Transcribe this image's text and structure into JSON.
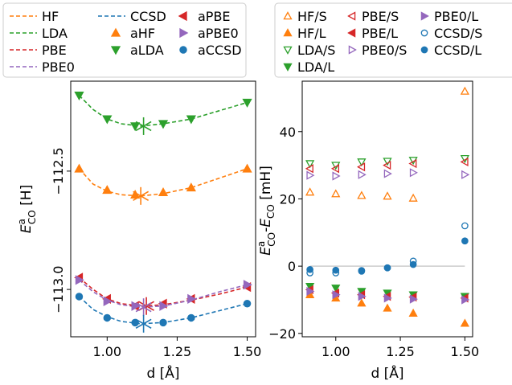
{
  "colors": {
    "HF": "#ff7f0e",
    "LDA": "#2ca02c",
    "PBE": "#d62728",
    "PBE0": "#9467bd",
    "CCSD": "#1f77b4"
  },
  "chart_data": [
    {
      "type": "scatter",
      "xlabel": "d [Å]",
      "ylabel": "E_CO^a [H]",
      "xlim": [
        0.87,
        1.53
      ],
      "ylim": [
        -113.2,
        -112.12
      ],
      "x_ticks": [
        1.0,
        1.25,
        1.5
      ],
      "x_tick_labels": [
        "1.00",
        "1.25",
        "1.50"
      ],
      "y_ticks": [
        -113.0,
        -112.5
      ],
      "y_tick_labels": [
        "−113.0",
        "−112.5"
      ],
      "legend": {
        "placement": "top",
        "entries": [
          {
            "label": "HF",
            "series": "HF",
            "kind": "line"
          },
          {
            "label": "LDA",
            "series": "LDA",
            "kind": "line"
          },
          {
            "label": "PBE",
            "series": "PBE",
            "kind": "line"
          },
          {
            "label": "PBE0",
            "series": "PBE0",
            "kind": "line"
          },
          {
            "label": "CCSD",
            "series": "CCSD",
            "kind": "line"
          },
          {
            "label": "aHF",
            "series": "HF",
            "kind": "marker",
            "marker": "triangle-up"
          },
          {
            "label": "aLDA",
            "series": "LDA",
            "kind": "marker",
            "marker": "triangle-down"
          },
          {
            "label": "aPBE",
            "series": "PBE",
            "kind": "marker",
            "marker": "triangle-left"
          },
          {
            "label": "aPBE0",
            "series": "PBE0",
            "kind": "marker",
            "marker": "triangle-right"
          },
          {
            "label": "aCCSD",
            "series": "CCSD",
            "kind": "marker",
            "marker": "circle"
          }
        ]
      },
      "x": [
        0.9,
        1.0,
        1.1,
        1.2,
        1.3,
        1.5
      ],
      "series": [
        {
          "name": "aHF",
          "key": "HF",
          "marker": "triangle-up",
          "values": [
            -112.49,
            -112.58,
            -112.6,
            -112.59,
            -112.57,
            -112.49
          ]
        },
        {
          "name": "aLDA",
          "key": "LDA",
          "marker": "triangle-down",
          "values": [
            -112.18,
            -112.28,
            -112.31,
            -112.3,
            -112.28,
            -112.21
          ]
        },
        {
          "name": "aPBE",
          "key": "PBE",
          "marker": "triangle-left",
          "values": [
            -112.95,
            -113.04,
            -113.07,
            -113.06,
            -113.04,
            -112.99
          ]
        },
        {
          "name": "aPBE0",
          "key": "PBE0",
          "marker": "triangle-right",
          "values": [
            -112.96,
            -113.05,
            -113.07,
            -113.07,
            -113.04,
            -112.98
          ]
        },
        {
          "name": "aCCSD",
          "key": "CCSD",
          "marker": "circle",
          "values": [
            -113.03,
            -113.12,
            -113.14,
            -113.14,
            -113.12,
            -113.06
          ]
        }
      ],
      "fits": [
        {
          "name": "HF",
          "key": "HF",
          "x": [
            0.9,
            0.95,
            1.0,
            1.05,
            1.12,
            1.2,
            1.3,
            1.4,
            1.5
          ],
          "y": [
            -112.49,
            -112.555,
            -112.585,
            -112.6,
            -112.605,
            -112.595,
            -112.57,
            -112.53,
            -112.49
          ]
        },
        {
          "name": "LDA",
          "key": "LDA",
          "x": [
            0.9,
            0.95,
            1.0,
            1.05,
            1.12,
            1.2,
            1.3,
            1.4,
            1.5
          ],
          "y": [
            -112.18,
            -112.24,
            -112.28,
            -112.3,
            -112.31,
            -112.3,
            -112.28,
            -112.245,
            -112.21
          ]
        },
        {
          "name": "PBE",
          "key": "PBE",
          "x": [
            0.9,
            0.95,
            1.0,
            1.05,
            1.12,
            1.2,
            1.3,
            1.4,
            1.5
          ],
          "y": [
            -112.95,
            -113.0,
            -113.04,
            -113.06,
            -113.07,
            -113.065,
            -113.045,
            -113.02,
            -112.99
          ]
        },
        {
          "name": "PBE0",
          "key": "PBE0",
          "x": [
            0.9,
            0.95,
            1.0,
            1.05,
            1.12,
            1.2,
            1.3,
            1.4,
            1.5
          ],
          "y": [
            -112.96,
            -113.01,
            -113.045,
            -113.065,
            -113.075,
            -113.07,
            -113.045,
            -113.01,
            -112.98
          ]
        },
        {
          "name": "CCSD",
          "key": "CCSD",
          "x": [
            0.9,
            0.95,
            1.0,
            1.05,
            1.12,
            1.2,
            1.3,
            1.4,
            1.5
          ],
          "y": [
            -113.03,
            -113.085,
            -113.115,
            -113.135,
            -113.145,
            -113.14,
            -113.12,
            -113.09,
            -113.06
          ]
        }
      ],
      "minima": [
        {
          "key": "HF",
          "x": 1.12,
          "y": -112.605
        },
        {
          "key": "LDA",
          "x": 1.13,
          "y": -112.31
        },
        {
          "key": "PBE",
          "x": 1.14,
          "y": -113.07
        },
        {
          "key": "PBE0",
          "x": 1.13,
          "y": -113.075
        },
        {
          "key": "CCSD",
          "x": 1.13,
          "y": -113.145
        }
      ]
    },
    {
      "type": "scatter",
      "xlabel": "d [Å]",
      "ylabel": "E_CO^a-E_CO [mH]",
      "xlim": [
        0.87,
        1.53
      ],
      "ylim": [
        -21,
        55
      ],
      "x_ticks": [
        1.0,
        1.25,
        1.5
      ],
      "x_tick_labels": [
        "1.00",
        "1.25",
        "1.50"
      ],
      "y_ticks": [
        -20,
        0,
        20,
        40
      ],
      "y_tick_labels": [
        "−20",
        "0",
        "20",
        "40"
      ],
      "reference_line": {
        "y": 0,
        "x": [
          0.9,
          1.5
        ],
        "color": "#cccccc"
      },
      "legend": {
        "placement": "top",
        "entries": [
          {
            "label": "HF/S",
            "series": "HF",
            "marker": "triangle-up",
            "fill": "open"
          },
          {
            "label": "HF/L",
            "series": "HF",
            "marker": "triangle-up",
            "fill": "filled"
          },
          {
            "label": "LDA/S",
            "series": "LDA",
            "marker": "triangle-down",
            "fill": "open"
          },
          {
            "label": "LDA/L",
            "series": "LDA",
            "marker": "triangle-down",
            "fill": "filled"
          },
          {
            "label": "PBE/S",
            "series": "PBE",
            "marker": "triangle-left",
            "fill": "open"
          },
          {
            "label": "PBE/L",
            "series": "PBE",
            "marker": "triangle-left",
            "fill": "filled"
          },
          {
            "label": "PBE0/S",
            "series": "PBE0",
            "marker": "triangle-right",
            "fill": "open"
          },
          {
            "label": "PBE0/L",
            "series": "PBE0",
            "marker": "triangle-right",
            "fill": "filled"
          },
          {
            "label": "CCSD/S",
            "series": "CCSD",
            "marker": "circle",
            "fill": "open"
          },
          {
            "label": "CCSD/L",
            "series": "CCSD",
            "marker": "circle",
            "fill": "filled"
          }
        ]
      },
      "series": [
        {
          "name": "HF/S",
          "key": "HF",
          "marker": "triangle-up",
          "fill": "open",
          "x": [
            0.9,
            1.0,
            1.1,
            1.2,
            1.3,
            1.5
          ],
          "values": [
            22,
            21.5,
            21,
            20.8,
            20.2,
            52
          ]
        },
        {
          "name": "LDA/S",
          "key": "LDA",
          "marker": "triangle-down",
          "fill": "open",
          "x": [
            0.9,
            1.0,
            1.1,
            1.2,
            1.3,
            1.5
          ],
          "values": [
            30.5,
            30,
            31,
            31.2,
            31.5,
            32
          ]
        },
        {
          "name": "PBE/S",
          "key": "PBE",
          "marker": "triangle-left",
          "fill": "open",
          "x": [
            0.9,
            1.0,
            1.1,
            1.2,
            1.3,
            1.5
          ],
          "values": [
            29,
            29,
            29.5,
            30,
            30.5,
            31
          ]
        },
        {
          "name": "PBE0/S",
          "key": "PBE0",
          "marker": "triangle-right",
          "fill": "open",
          "x": [
            0.9,
            1.0,
            1.1,
            1.2,
            1.3,
            1.5
          ],
          "values": [
            27,
            26.8,
            27.2,
            27.5,
            27.8,
            27.2
          ]
        },
        {
          "name": "CCSD/S",
          "key": "CCSD",
          "marker": "circle",
          "fill": "open",
          "x": [
            0.9,
            1.0,
            1.1,
            1.2,
            1.3,
            1.5
          ],
          "values": [
            -2,
            -2,
            -1.5,
            -0.5,
            1.5,
            12
          ]
        },
        {
          "name": "HF/L",
          "key": "HF",
          "marker": "triangle-up",
          "fill": "filled",
          "x": [
            0.9,
            1.0,
            1.1,
            1.2,
            1.3,
            1.5
          ],
          "values": [
            -8.5,
            -9.5,
            -11,
            -12.5,
            -14,
            -17
          ]
        },
        {
          "name": "LDA/L",
          "key": "LDA",
          "marker": "triangle-down",
          "fill": "filled",
          "x": [
            0.9,
            1.0,
            1.1,
            1.2,
            1.3,
            1.5
          ],
          "values": [
            -6,
            -6.5,
            -7.5,
            -8,
            -8.5,
            -9
          ]
        },
        {
          "name": "PBE/L",
          "key": "PBE",
          "marker": "triangle-left",
          "fill": "filled",
          "x": [
            0.9,
            1.0,
            1.1,
            1.2,
            1.3,
            1.5
          ],
          "values": [
            -7,
            -8,
            -8.5,
            -9,
            -9.2,
            -9.5
          ]
        },
        {
          "name": "PBE0/L",
          "key": "PBE0",
          "marker": "triangle-right",
          "fill": "filled",
          "x": [
            0.9,
            1.0,
            1.1,
            1.2,
            1.3,
            1.5
          ],
          "values": [
            -7.5,
            -8.5,
            -9,
            -9.5,
            -9.8,
            -10
          ]
        },
        {
          "name": "CCSD/L",
          "key": "CCSD",
          "marker": "circle",
          "fill": "filled",
          "x": [
            0.9,
            1.0,
            1.1,
            1.2,
            1.3,
            1.5
          ],
          "values": [
            -1,
            -1.2,
            -1.3,
            -0.5,
            0.5,
            7.5
          ]
        }
      ]
    }
  ]
}
